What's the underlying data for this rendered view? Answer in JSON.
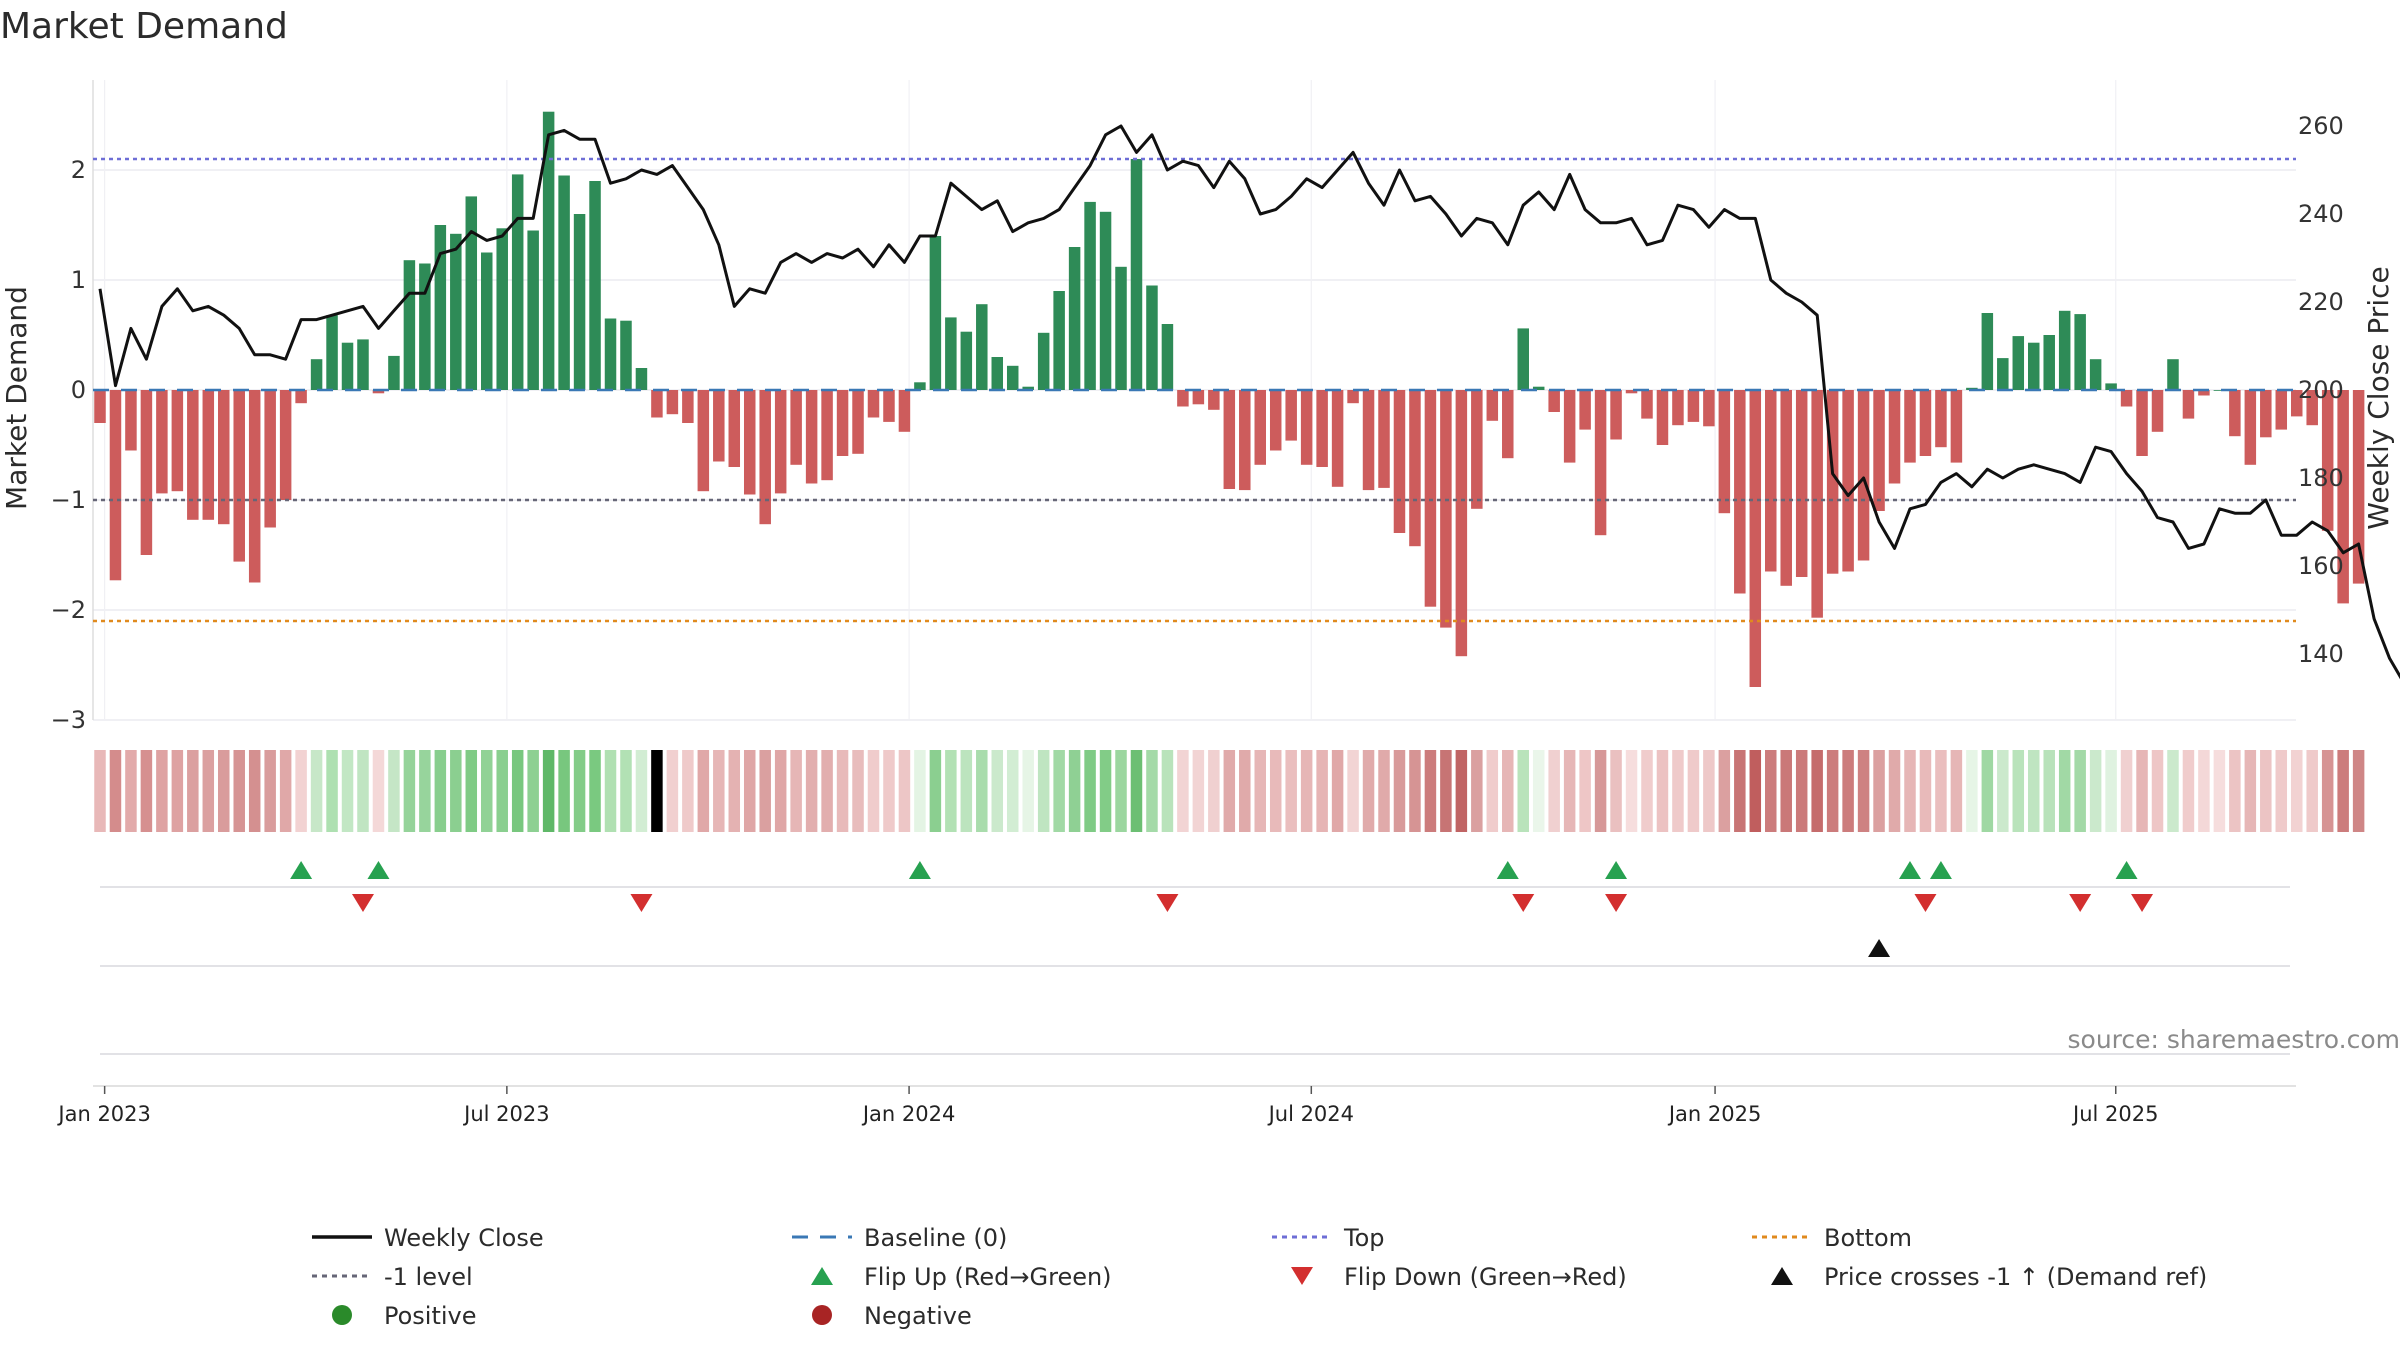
{
  "chart_data": {
    "type": "bar",
    "title": "Market Demand",
    "ylabel": "Market Demand",
    "y2label": "Weekly Close Price",
    "ylim": [
      -3.2,
      2.8
    ],
    "y2lim": [
      129.6,
      265.2
    ],
    "yticks": [
      -3,
      -2,
      -1,
      0,
      1,
      2
    ],
    "yticklabels": [
      "−3",
      "−2",
      "−1",
      "0",
      "1",
      "2"
    ],
    "y2ticks": [
      140,
      160,
      180,
      200,
      220,
      240,
      260
    ],
    "y2ticklabels": [
      "140",
      "160",
      "180",
      "200",
      "220",
      "240",
      "260"
    ],
    "xticks": [
      {
        "week": 0.3,
        "label": "Jan 2023"
      },
      {
        "week": 26.3,
        "label": "Jul 2023"
      },
      {
        "week": 52.3,
        "label": "Jan 2024"
      },
      {
        "week": 78.3,
        "label": "Jul 2024"
      },
      {
        "week": 104.4,
        "label": "Jan 2025"
      },
      {
        "week": 130.3,
        "label": "Jul 2025"
      }
    ],
    "reference_lines": {
      "top": 2.1,
      "minus_one": -1,
      "bottom": -2.1,
      "baseline": 0
    },
    "demand": [
      -0.3,
      -1.73,
      -0.55,
      -1.5,
      -0.94,
      -0.92,
      -1.18,
      -1.18,
      -1.22,
      -1.56,
      -1.75,
      -1.25,
      -1.0,
      -0.12,
      0.28,
      0.68,
      0.43,
      0.46,
      -0.03,
      0.31,
      1.18,
      1.15,
      1.5,
      1.42,
      1.76,
      1.25,
      1.47,
      1.96,
      1.45,
      2.53,
      1.95,
      1.6,
      1.9,
      0.65,
      0.63,
      0.2,
      -0.25,
      -0.22,
      -0.3,
      -0.92,
      -0.65,
      -0.7,
      -0.95,
      -1.22,
      -0.94,
      -0.68,
      -0.85,
      -0.82,
      -0.6,
      -0.58,
      -0.25,
      -0.29,
      -0.38,
      0.07,
      1.4,
      0.66,
      0.53,
      0.78,
      0.3,
      0.22,
      0.03,
      0.52,
      0.9,
      1.3,
      1.71,
      1.62,
      1.12,
      2.1,
      0.95,
      0.6,
      -0.15,
      -0.13,
      -0.18,
      -0.9,
      -0.91,
      -0.68,
      -0.55,
      -0.46,
      -0.68,
      -0.7,
      -0.88,
      -0.12,
      -0.91,
      -0.89,
      -1.3,
      -1.42,
      -1.97,
      -2.16,
      -2.42,
      -1.08,
      -0.28,
      -0.62,
      0.56,
      0.03,
      -0.2,
      -0.66,
      -0.36,
      -1.32,
      -0.45,
      -0.03,
      -0.26,
      -0.5,
      -0.32,
      -0.29,
      -0.33,
      -1.12,
      -1.85,
      -2.7,
      -1.65,
      -1.78,
      -1.7,
      -2.07,
      -1.67,
      -1.65,
      -1.55,
      -1.1,
      -0.85,
      -0.66,
      -0.6,
      -0.52,
      -0.66,
      0.02,
      0.7,
      0.29,
      0.49,
      0.43,
      0.5,
      0.72,
      0.69,
      0.28,
      0.06,
      -0.15,
      -0.6,
      -0.38,
      0.28,
      -0.26,
      -0.05,
      0,
      -0.42,
      -0.68,
      -0.43,
      -0.36,
      -0.24,
      -0.32,
      -1.28,
      -1.94,
      -1.76
    ],
    "close": [
      223,
      201,
      214,
      207,
      219,
      223,
      218,
      219,
      217,
      214,
      208,
      208,
      207,
      216,
      216,
      217,
      218,
      219,
      214,
      218,
      222,
      222,
      231,
      232,
      236,
      234,
      235,
      239,
      239,
      258,
      259,
      257,
      257,
      247,
      248,
      250,
      249,
      251,
      246,
      241,
      233,
      219,
      223,
      222,
      229,
      231,
      229,
      231,
      230,
      232,
      228,
      233,
      229,
      235,
      235,
      247,
      244,
      241,
      243,
      236,
      238,
      239,
      241,
      246,
      251,
      258,
      260,
      254,
      258,
      250,
      252,
      251,
      246,
      252,
      248,
      240,
      241,
      244,
      248,
      246,
      250,
      254,
      247,
      242,
      250,
      243,
      244,
      240,
      235,
      239,
      238,
      233,
      242,
      245,
      241,
      249,
      241,
      238,
      238,
      239,
      233,
      234,
      242,
      241,
      237,
      241,
      239,
      239,
      225,
      222,
      220,
      217,
      181,
      176,
      180,
      170,
      164,
      173,
      174,
      179,
      181,
      178,
      182,
      180,
      182,
      183,
      182,
      181,
      179,
      187,
      186,
      181,
      177,
      171,
      170,
      164,
      165,
      173,
      172,
      172,
      175,
      167,
      167,
      170,
      168,
      163,
      165,
      148,
      139,
      133
    ],
    "heat": [
      "#e8b8b8",
      "#d48c8c",
      "#e2aaaa",
      "#d69090",
      "#dea2a2",
      "#dea2a2",
      "#dba0a0",
      "#dba0a0",
      "#d99c9c",
      "#d69494",
      "#d49090",
      "#d99c9c",
      "#e0a8a8",
      "#f2d2d2",
      "#c7e7c8",
      "#aee0b1",
      "#c2e7c4",
      "#c0e5c2",
      "#f4d8d8",
      "#c5e6c6",
      "#95d39a",
      "#97d49c",
      "#88ce8d",
      "#8bcf90",
      "#7fcb85",
      "#91d296",
      "#8acf8f",
      "#78c77e",
      "#8dd092",
      "#5fb868",
      "#78c77e",
      "#83cc88",
      "#7ac980",
      "#b0e0b2",
      "#b2e1b4",
      "#d2edd3",
      "#f0ccccc",
      "#f1d0d0",
      "#efcaca",
      "#e0a8a8",
      "#e6b6b6",
      "#e4b2b2",
      "#dfa6a6",
      "#daa0a0",
      "#dfa6a6",
      "#e6b6b6",
      "#e2aeae",
      "#e2aeae",
      "#e8baba",
      "#e8bcbc",
      "#f0cccc",
      "#efcaca",
      "#edc6c6",
      "#e4f4e4",
      "#8bcf90",
      "#b2e1b4",
      "#bce4be",
      "#a9dcac",
      "#cbe9cc",
      "#d2edd3",
      "#e6f5e6",
      "#bfe5c1",
      "#a1d9a5",
      "#8fd094",
      "#7fcb85",
      "#82cc87",
      "#9bd69f",
      "#6cbf73",
      "#a4daa8",
      "#b9e3bb",
      "#f2d4d4",
      "#f2d4d4",
      "#f0d0d0",
      "#e0aaaa",
      "#e0aaaa",
      "#e6b6b6",
      "#e8baba",
      "#eabebe",
      "#e6b6b6",
      "#e6b4b4",
      "#e0a8a8",
      "#f2d4d4",
      "#e0aaaa",
      "#e0aaaa",
      "#d89a9a",
      "#d69494",
      "#cc7c7c",
      "#c77474",
      "#c06464",
      "#daa0a0",
      "#f0cccc",
      "#e6b6b6",
      "#b9e3bb",
      "#eaf6ea",
      "#f0d0d0",
      "#e6b6b6",
      "#eec6c6",
      "#d69898",
      "#eac0c0",
      "#f6dddd",
      "#f0cccc",
      "#ecc2c2",
      "#efcaca",
      "#efcaca",
      "#eec8c8",
      "#dba0a0",
      "#c87474",
      "#c05e5e",
      "#cc7c7c",
      "#ca7878",
      "#cb7a7a",
      "#c56c6c",
      "#cc7c7c",
      "#cc7c7c",
      "#ce8282",
      "#dba0a0",
      "#e0aaaa",
      "#e6b6b6",
      "#e8baba",
      "#eabebe",
      "#e6b6b6",
      "#e6f5e6",
      "#9fd8a3",
      "#cbe9cc",
      "#b9e3bb",
      "#bfe5c1",
      "#b8e2ba",
      "#a1d9a5",
      "#a3d9a7",
      "#cbe9cc",
      "#dff2e0",
      "#f0d0d0",
      "#e6b6b6",
      "#eec6c6",
      "#cbe9cc",
      "#f0cccc",
      "#f4d8d8",
      "#f6dddd",
      "#ecc4c4",
      "#e6b6b6",
      "#ecc4c4",
      "#efcaca",
      "#f2d2d2",
      "#efcaca",
      "#d69494",
      "#cc7c7c",
      "#cf8686"
    ],
    "flip_up_weeks": [
      13,
      18,
      53,
      91,
      98,
      117,
      119,
      131
    ],
    "flip_down_weeks": [
      17,
      35,
      69,
      92,
      98,
      118,
      128,
      132
    ],
    "price_cross_weeks": [
      115
    ],
    "legend": [
      {
        "label": "Weekly Close",
        "marker": "solid-line",
        "color": "#111111"
      },
      {
        "label": "Baseline (0)",
        "marker": "dashed-line",
        "color": "#3a78b5"
      },
      {
        "label": "Top",
        "marker": "dotted-line",
        "color": "#6e6ed6"
      },
      {
        "label": "Bottom",
        "marker": "dotted-line",
        "color": "#e08a1e"
      },
      {
        "label": "-1 level",
        "marker": "dotted-line",
        "color": "#666677"
      },
      {
        "label": "Flip Up (Red→Green)",
        "marker": "triangle-up",
        "color": "#27a150"
      },
      {
        "label": "Flip Down (Green→Red)",
        "marker": "triangle-down",
        "color": "#d32f2f"
      },
      {
        "label": "Price crosses -1 ↑ (Demand ref)",
        "marker": "triangle-up",
        "color": "#111111"
      },
      {
        "label": "Positive",
        "marker": "circle",
        "color": "#2a8a2a"
      },
      {
        "label": "Negative",
        "marker": "circle",
        "color": "#a82424"
      }
    ],
    "source": "source: sharemaestro.com"
  },
  "colors": {
    "positive_bar": "#2e8b57",
    "negative_bar": "#cd5c5c",
    "price_line": "#111111",
    "baseline": "#3a78b5",
    "top_line": "#6e6ed6",
    "bottom_line": "#e08a1e",
    "minus_one_line": "#666677",
    "flip_up": "#27a150",
    "flip_down": "#d32f2f",
    "grid": "#e6e6ee"
  }
}
